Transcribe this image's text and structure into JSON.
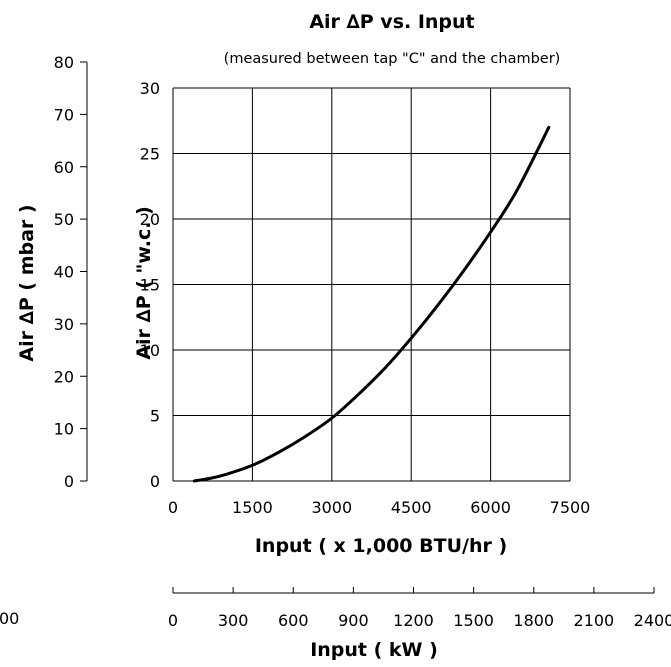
{
  "chart_data": {
    "type": "line",
    "title": "Air ∆P vs. Input",
    "subtitle": "(measured between tap \"C\" and the chamber)",
    "xlabel": "Input ( x 1,000 BTU/hr )",
    "xlabel_secondary": "Input ( kW )",
    "ylabel": "Air ∆P ( \"w.c. )",
    "ylabel_secondary": "Air ∆P ( mbar )",
    "xlim": [
      0,
      7500
    ],
    "ylim": [
      0,
      30
    ],
    "x2lim": [
      0,
      2400
    ],
    "y2lim": [
      0,
      80
    ],
    "x_ticks": [
      "0",
      "1500",
      "3000",
      "4500",
      "6000",
      "7500"
    ],
    "y_ticks": [
      "0",
      "5",
      "10",
      "15",
      "20",
      "25",
      "30"
    ],
    "x2_ticks": [
      "0",
      "300",
      "600",
      "900",
      "1200",
      "1500",
      "1800",
      "2100",
      "2400"
    ],
    "y2_ticks": [
      "0",
      "10",
      "20",
      "30",
      "40",
      "50",
      "60",
      "70",
      "80"
    ],
    "stray_label": "00",
    "grid": true,
    "series": [
      {
        "x": [
          400,
          700,
          1000,
          1500,
          2000,
          2500,
          3000,
          3500,
          4000,
          4500,
          5000,
          5500,
          6000,
          6500,
          7100
        ],
        "values": [
          0.0,
          0.2,
          0.5,
          1.2,
          2.2,
          3.4,
          4.8,
          6.6,
          8.6,
          10.9,
          13.4,
          16.1,
          19.0,
          22.2,
          27.0
        ]
      }
    ]
  }
}
